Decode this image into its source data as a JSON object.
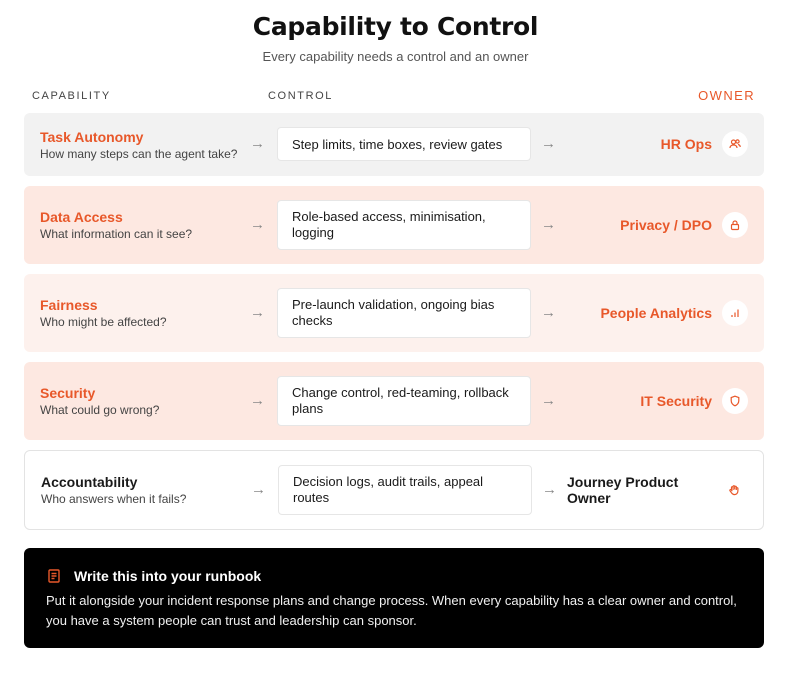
{
  "title": "Capability to Control",
  "subtitle": "Every capability needs a control and an owner",
  "headers": {
    "capability": "CAPABILITY",
    "control": "CONTROL",
    "owner": "OWNER"
  },
  "arrow": "→",
  "rows": [
    {
      "capability": "Task Autonomy",
      "question": "How many steps can the agent take?",
      "control": "Step limits, time boxes, review gates",
      "owner": "HR Ops",
      "icon": "people-icon"
    },
    {
      "capability": "Data Access",
      "question": "What information can it see?",
      "control": "Role-based access, minimisation, logging",
      "owner": "Privacy / DPO",
      "icon": "lock-icon"
    },
    {
      "capability": "Fairness",
      "question": "Who might be affected?",
      "control": "Pre-launch validation, ongoing bias checks",
      "owner": "People Analytics",
      "icon": "bar-chart-icon"
    },
    {
      "capability": "Security",
      "question": "What could go wrong?",
      "control": "Change control, red-teaming, rollback plans",
      "owner": "IT Security",
      "icon": "shield-icon"
    },
    {
      "capability": "Accountability",
      "question": "Who answers when it fails?",
      "control": "Decision logs, audit trails, appeal routes",
      "owner": "Journey Product Owner",
      "icon": "hand-icon"
    }
  ],
  "callout": {
    "title": "Write this into your runbook",
    "body": "Put it alongside your incident response plans and change process. When every capability has a clear owner and control, you have a system people can trust and leadership can sponsor.",
    "icon": "document-icon"
  },
  "colors": {
    "accent": "#e8582a",
    "row_grey": "#f2f2f2",
    "row_peach": "#fde8e1",
    "row_light_peach": "#fdf1ed",
    "callout_bg": "#000000"
  }
}
